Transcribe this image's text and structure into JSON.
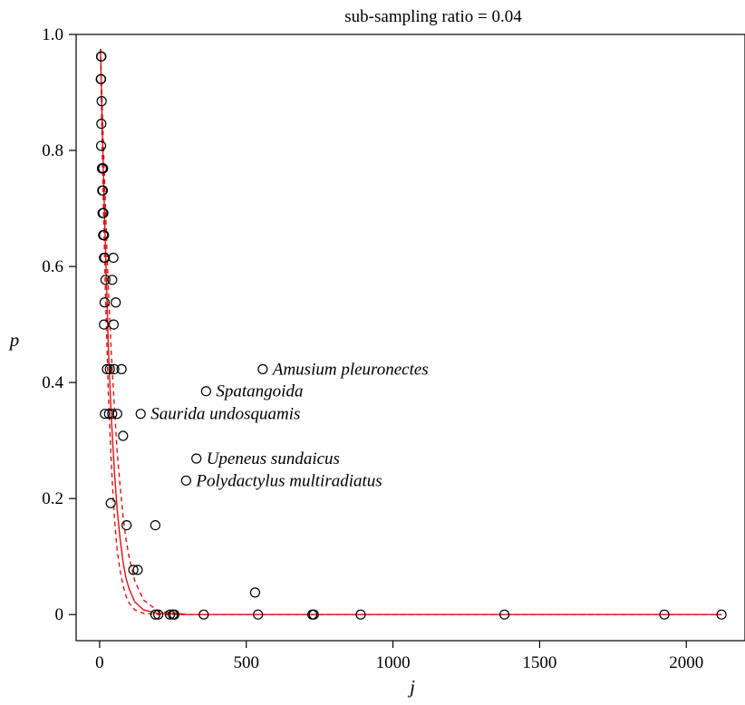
{
  "chart_data": {
    "type": "scatter",
    "title": "sub-sampling ratio = 0.04",
    "xlabel": "j",
    "ylabel": "p",
    "xlim": [
      -80,
      2200
    ],
    "ylim": [
      -0.045,
      1.0
    ],
    "xticks": [
      0,
      500,
      1000,
      1500,
      2000
    ],
    "xtick_labels": [
      "0",
      "500",
      "1000",
      "1500",
      "2000"
    ],
    "yticks": [
      0,
      0.2,
      0.4,
      0.6,
      0.8,
      1.0
    ],
    "ytick_labels": [
      "0",
      "0.2",
      "0.4",
      "0.6",
      "0.8",
      "1.0"
    ],
    "grid": false,
    "legend": "none",
    "colors": {
      "curve": "#dd1111",
      "points": "#000000",
      "axes": "#000000"
    },
    "points": [
      {
        "x": 5,
        "y": 0.962
      },
      {
        "x": 6,
        "y": 0.962
      },
      {
        "x": 4,
        "y": 0.923
      },
      {
        "x": 5,
        "y": 0.923
      },
      {
        "x": 7,
        "y": 0.885
      },
      {
        "x": 6,
        "y": 0.846
      },
      {
        "x": 5,
        "y": 0.808
      },
      {
        "x": 8,
        "y": 0.769
      },
      {
        "x": 10,
        "y": 0.769
      },
      {
        "x": 12,
        "y": 0.769
      },
      {
        "x": 9,
        "y": 0.731
      },
      {
        "x": 11,
        "y": 0.731
      },
      {
        "x": 10,
        "y": 0.692
      },
      {
        "x": 13,
        "y": 0.692
      },
      {
        "x": 12,
        "y": 0.654
      },
      {
        "x": 15,
        "y": 0.654
      },
      {
        "x": 15,
        "y": 0.615
      },
      {
        "x": 18,
        "y": 0.615
      },
      {
        "x": 47,
        "y": 0.615
      },
      {
        "x": 20,
        "y": 0.577
      },
      {
        "x": 43,
        "y": 0.577
      },
      {
        "x": 17,
        "y": 0.538
      },
      {
        "x": 55,
        "y": 0.538
      },
      {
        "x": 15,
        "y": 0.5
      },
      {
        "x": 48,
        "y": 0.5
      },
      {
        "x": 25,
        "y": 0.423
      },
      {
        "x": 35,
        "y": 0.423
      },
      {
        "x": 50,
        "y": 0.423
      },
      {
        "x": 75,
        "y": 0.423
      },
      {
        "x": 556,
        "y": 0.423
      },
      {
        "x": 363,
        "y": 0.385
      },
      {
        "x": 18,
        "y": 0.346
      },
      {
        "x": 32,
        "y": 0.346
      },
      {
        "x": 43,
        "y": 0.346
      },
      {
        "x": 60,
        "y": 0.346
      },
      {
        "x": 140,
        "y": 0.346
      },
      {
        "x": 80,
        "y": 0.308
      },
      {
        "x": 330,
        "y": 0.269
      },
      {
        "x": 295,
        "y": 0.231
      },
      {
        "x": 38,
        "y": 0.192
      },
      {
        "x": 92,
        "y": 0.154
      },
      {
        "x": 190,
        "y": 0.154
      },
      {
        "x": 115,
        "y": 0.077
      },
      {
        "x": 130,
        "y": 0.077
      },
      {
        "x": 530,
        "y": 0.038
      },
      {
        "x": 190,
        "y": 0
      },
      {
        "x": 200,
        "y": 0
      },
      {
        "x": 240,
        "y": 0
      },
      {
        "x": 250,
        "y": 0
      },
      {
        "x": 255,
        "y": 0
      },
      {
        "x": 355,
        "y": 0
      },
      {
        "x": 540,
        "y": 0
      },
      {
        "x": 725,
        "y": 0
      },
      {
        "x": 730,
        "y": 0
      },
      {
        "x": 890,
        "y": 0
      },
      {
        "x": 1380,
        "y": 0
      },
      {
        "x": 1925,
        "y": 0
      },
      {
        "x": 2120,
        "y": 0
      }
    ],
    "annotations": [
      {
        "text": "Amusium pleuronectes",
        "x": 556,
        "y": 0.423
      },
      {
        "text": "Spatangoida",
        "x": 363,
        "y": 0.385
      },
      {
        "text": "Saurida undosquamis",
        "x": 140,
        "y": 0.346
      },
      {
        "text": "Upeneus sundaicus",
        "x": 330,
        "y": 0.269
      },
      {
        "text": "Polydactylus multiradiatus",
        "x": 295,
        "y": 0.231
      }
    ],
    "curves": [
      {
        "style": "solid",
        "x": [
          3,
          10,
          20,
          30,
          40,
          50,
          60,
          70,
          80,
          90,
          100,
          120,
          150,
          200,
          300,
          500,
          1000,
          2120
        ],
        "y": [
          0.975,
          0.82,
          0.63,
          0.46,
          0.34,
          0.25,
          0.18,
          0.13,
          0.09,
          0.063,
          0.045,
          0.022,
          0.008,
          0.002,
          0.0,
          0.0,
          0.0,
          0.0
        ]
      },
      {
        "style": "dashed",
        "x": [
          3,
          10,
          20,
          30,
          40,
          50,
          60,
          70,
          80,
          90,
          100,
          120,
          150,
          200,
          300,
          500,
          1000,
          2120
        ],
        "y": [
          0.975,
          0.86,
          0.7,
          0.56,
          0.45,
          0.36,
          0.28,
          0.22,
          0.17,
          0.13,
          0.1,
          0.058,
          0.025,
          0.006,
          0.0,
          0.0,
          0.0,
          0.0
        ]
      },
      {
        "style": "dashed",
        "x": [
          3,
          10,
          20,
          30,
          40,
          50,
          60,
          70,
          80,
          90,
          100,
          120,
          150,
          200,
          300,
          500,
          1000,
          2120
        ],
        "y": [
          0.975,
          0.77,
          0.55,
          0.38,
          0.26,
          0.17,
          0.11,
          0.075,
          0.05,
          0.032,
          0.02,
          0.008,
          0.002,
          0.0,
          0.0,
          0.0,
          0.0,
          0.0
        ]
      }
    ]
  }
}
